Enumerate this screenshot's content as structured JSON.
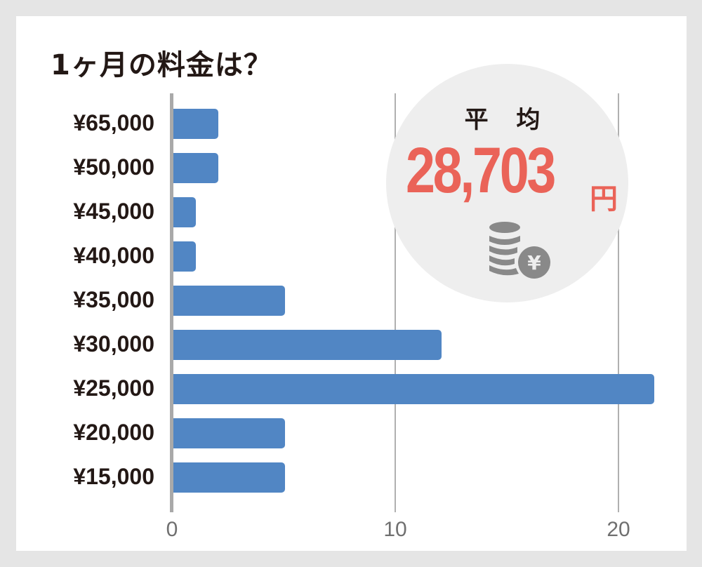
{
  "title": "1ヶ月の料金は？",
  "average": {
    "label": "平 均",
    "value": "28,703",
    "unit": "円",
    "icon": "coins-yen-icon"
  },
  "colors": {
    "bar": "#5186c4",
    "accent": "#ea6358",
    "circle": "#eeeeee",
    "background": "#e5e5e5"
  },
  "chart_data": {
    "type": "bar",
    "orientation": "horizontal",
    "title": "1ヶ月の料金は？",
    "categories": [
      "¥65,000",
      "¥50,000",
      "¥45,000",
      "¥40,000",
      "¥35,000",
      "¥30,000",
      "¥25,000",
      "¥20,000",
      "¥15,000"
    ],
    "values": [
      2,
      2,
      1,
      1,
      5,
      12,
      21.5,
      5,
      5
    ],
    "xlabel": "",
    "ylabel": "",
    "xticks": [
      "0",
      "10",
      "20"
    ],
    "xlim": [
      0,
      23
    ],
    "grid": true,
    "annotation": "平均 28,703円"
  }
}
